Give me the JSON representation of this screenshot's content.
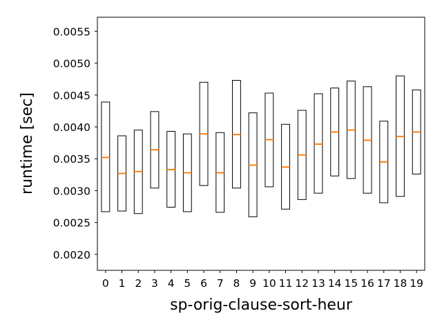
{
  "chart_data": {
    "type": "box",
    "title": "",
    "xlabel": "sp-orig-clause-sort-heur",
    "ylabel": "runtime [sec]",
    "categories": [
      "0",
      "1",
      "2",
      "3",
      "4",
      "5",
      "6",
      "7",
      "8",
      "9",
      "10",
      "11",
      "12",
      "13",
      "14",
      "15",
      "16",
      "17",
      "18",
      "19"
    ],
    "ylim": [
      0.00175,
      0.00572
    ],
    "yticks": [
      0.002,
      0.0025,
      0.003,
      0.0035,
      0.004,
      0.0045,
      0.005,
      0.0055
    ],
    "ytick_labels": [
      "0.0020",
      "0.0025",
      "0.0030",
      "0.0035",
      "0.0040",
      "0.0045",
      "0.0050",
      "0.0055"
    ],
    "boxes": [
      {
        "q1": 0.00267,
        "median": 0.00352,
        "q3": 0.00439
      },
      {
        "q1": 0.00268,
        "median": 0.00327,
        "q3": 0.00386
      },
      {
        "q1": 0.00264,
        "median": 0.0033,
        "q3": 0.00395
      },
      {
        "q1": 0.00304,
        "median": 0.00364,
        "q3": 0.00424
      },
      {
        "q1": 0.00274,
        "median": 0.00333,
        "q3": 0.00393
      },
      {
        "q1": 0.00267,
        "median": 0.00328,
        "q3": 0.00389
      },
      {
        "q1": 0.00308,
        "median": 0.00389,
        "q3": 0.0047
      },
      {
        "q1": 0.00266,
        "median": 0.00328,
        "q3": 0.00391
      },
      {
        "q1": 0.00304,
        "median": 0.00388,
        "q3": 0.00473
      },
      {
        "q1": 0.00259,
        "median": 0.0034,
        "q3": 0.00422
      },
      {
        "q1": 0.00306,
        "median": 0.0038,
        "q3": 0.00453
      },
      {
        "q1": 0.00271,
        "median": 0.00337,
        "q3": 0.00404
      },
      {
        "q1": 0.00286,
        "median": 0.00356,
        "q3": 0.00426
      },
      {
        "q1": 0.00296,
        "median": 0.00373,
        "q3": 0.00452
      },
      {
        "q1": 0.00323,
        "median": 0.00392,
        "q3": 0.00461
      },
      {
        "q1": 0.00319,
        "median": 0.00395,
        "q3": 0.00472
      },
      {
        "q1": 0.00296,
        "median": 0.00379,
        "q3": 0.00463
      },
      {
        "q1": 0.00281,
        "median": 0.00345,
        "q3": 0.00409
      },
      {
        "q1": 0.00291,
        "median": 0.00385,
        "q3": 0.0048
      },
      {
        "q1": 0.00326,
        "median": 0.00392,
        "q3": 0.00458
      }
    ],
    "colors": {
      "box": "#000000",
      "median": "#ff7f0e",
      "background": "#ffffff"
    },
    "grid": false,
    "legend": "none"
  }
}
